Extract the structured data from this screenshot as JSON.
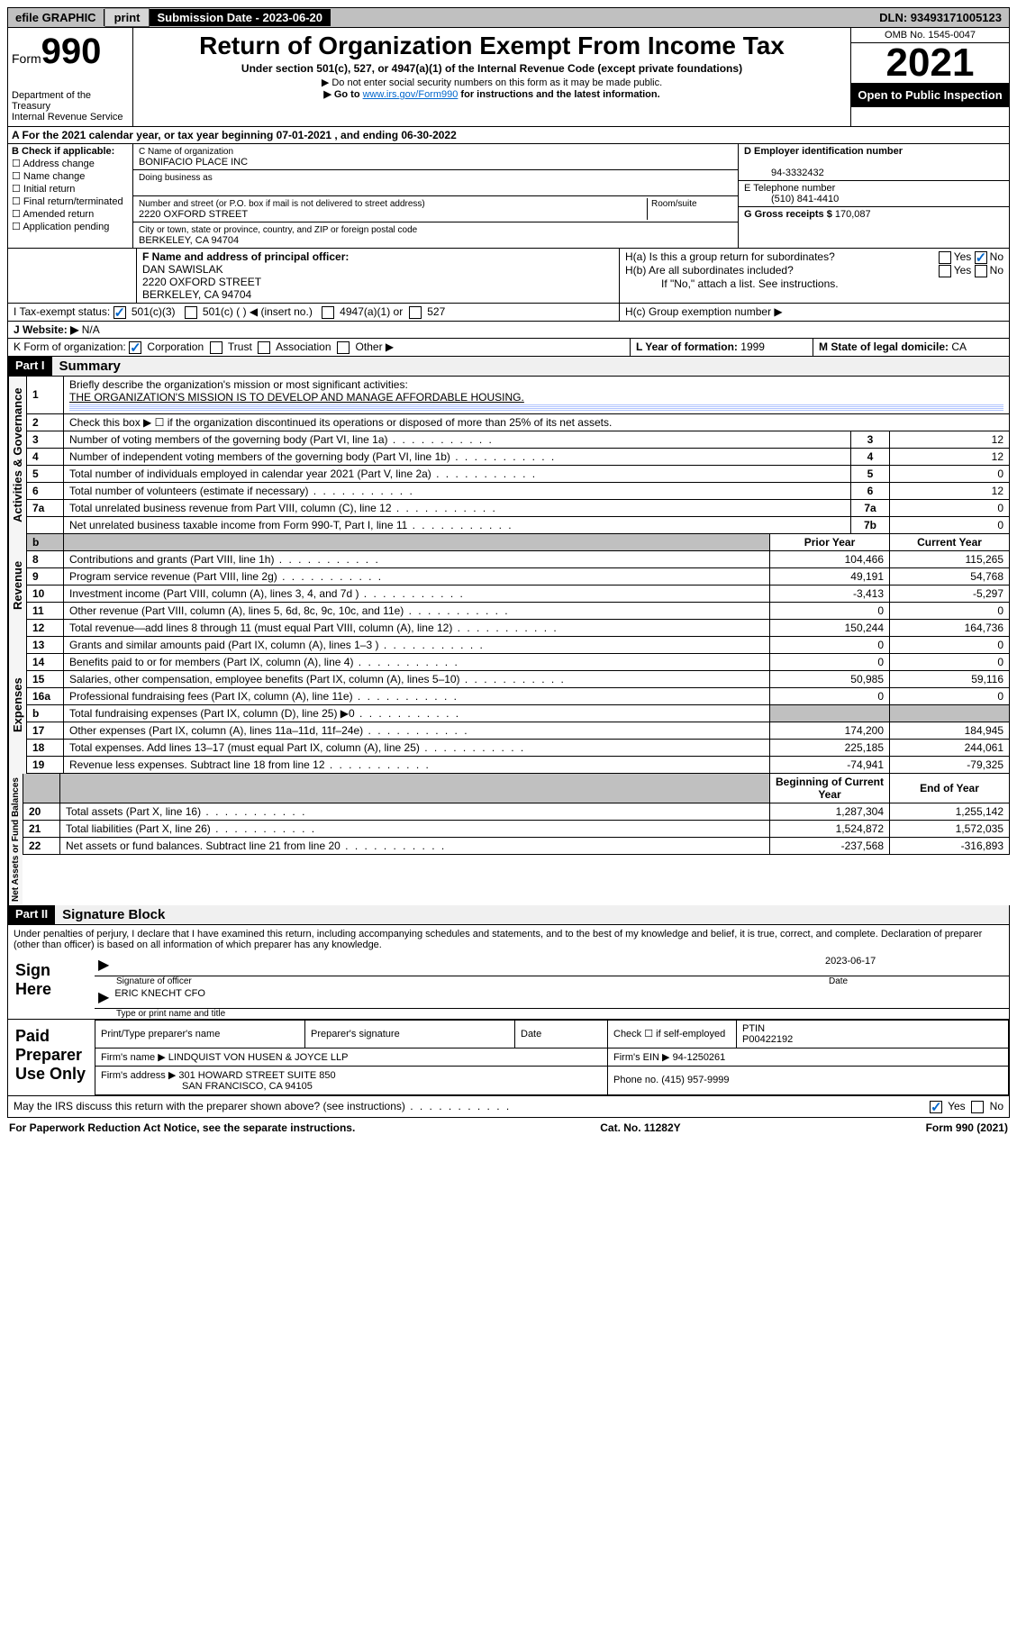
{
  "topbar": {
    "efile": "efile GRAPHIC",
    "print": "print",
    "sub_label": "Submission Date - 2023-06-20",
    "dln": "DLN: 93493171005123"
  },
  "header": {
    "form_prefix": "Form",
    "form_num": "990",
    "dept": "Department of the Treasury",
    "irs": "Internal Revenue Service",
    "title": "Return of Organization Exempt From Income Tax",
    "sub1": "Under section 501(c), 527, or 4947(a)(1) of the Internal Revenue Code (except private foundations)",
    "sub2": "▶ Do not enter social security numbers on this form as it may be made public.",
    "sub3_a": "▶ Go to ",
    "sub3_link": "www.irs.gov/Form990",
    "sub3_b": " for instructions and the latest information.",
    "omb": "OMB No. 1545-0047",
    "year": "2021",
    "inspect": "Open to Public Inspection"
  },
  "rowA": "A For the 2021 calendar year, or tax year beginning 07-01-2021     , and ending 06-30-2022",
  "boxB": {
    "label": "B Check if applicable:",
    "items": [
      "Address change",
      "Name change",
      "Initial return",
      "Final return/terminated",
      "Amended return",
      "Application pending"
    ]
  },
  "boxC": {
    "name_lbl": "C Name of organization",
    "name": "BONIFACIO PLACE INC",
    "dba_lbl": "Doing business as",
    "addr_lbl": "Number and street (or P.O. box if mail is not delivered to street address)",
    "room_lbl": "Room/suite",
    "addr": "2220 OXFORD STREET",
    "city_lbl": "City or town, state or province, country, and ZIP or foreign postal code",
    "city": "BERKELEY, CA  94704"
  },
  "boxD": {
    "lbl": "D Employer identification number",
    "val": "94-3332432"
  },
  "boxE": {
    "lbl": "E Telephone number",
    "val": "(510) 841-4410"
  },
  "boxG": {
    "lbl": "G Gross receipts $",
    "val": "170,087"
  },
  "boxF": {
    "lbl": "F  Name and address of principal officer:",
    "name": "DAN SAWISLAK",
    "addr": "2220 OXFORD STREET",
    "city": "BERKELEY, CA  94704"
  },
  "boxH": {
    "a": "H(a)  Is this a group return for subordinates?",
    "b": "H(b)  Are all subordinates included?",
    "note": "If \"No,\" attach a list. See instructions.",
    "c": "H(c)  Group exemption number ▶",
    "yes": "Yes",
    "no": "No"
  },
  "rowI": {
    "lbl": "I   Tax-exempt status:",
    "a": "501(c)(3)",
    "b": "501(c) (  ) ◀ (insert no.)",
    "c": "4947(a)(1) or",
    "d": "527"
  },
  "rowJ": {
    "lbl": "J   Website: ▶",
    "val": "N/A"
  },
  "rowK": {
    "lbl": "K Form of organization:",
    "a": "Corporation",
    "b": "Trust",
    "c": "Association",
    "d": "Other ▶"
  },
  "rowL": {
    "lbl": "L Year of formation:",
    "val": "1999"
  },
  "rowM": {
    "lbl": "M State of legal domicile:",
    "val": "CA"
  },
  "part1": {
    "hdr": "Part I",
    "title": "Summary",
    "line1_lbl": "Briefly describe the organization's mission or most significant activities:",
    "line1_val": "THE ORGANIZATION'S MISSION IS TO DEVELOP AND MANAGE AFFORDABLE HOUSING.",
    "line2": "Check this box ▶ ☐  if the organization discontinued its operations or disposed of more than 25% of its net assets.",
    "sides": {
      "gov": "Activities & Governance",
      "rev": "Revenue",
      "exp": "Expenses",
      "net": "Net Assets or Fund Balances"
    },
    "gov_rows": [
      {
        "n": "3",
        "d": "Number of voting members of the governing body (Part VI, line 1a)",
        "b": "3",
        "v": "12"
      },
      {
        "n": "4",
        "d": "Number of independent voting members of the governing body (Part VI, line 1b)",
        "b": "4",
        "v": "12"
      },
      {
        "n": "5",
        "d": "Total number of individuals employed in calendar year 2021 (Part V, line 2a)",
        "b": "5",
        "v": "0"
      },
      {
        "n": "6",
        "d": "Total number of volunteers (estimate if necessary)",
        "b": "6",
        "v": "12"
      },
      {
        "n": "7a",
        "d": "Total unrelated business revenue from Part VIII, column (C), line 12",
        "b": "7a",
        "v": "0"
      },
      {
        "n": "",
        "d": "Net unrelated business taxable income from Form 990-T, Part I, line 11",
        "b": "7b",
        "v": "0"
      }
    ],
    "col_hdrs": {
      "b": "b",
      "prior": "Prior Year",
      "curr": "Current Year"
    },
    "rev_rows": [
      {
        "n": "8",
        "d": "Contributions and grants (Part VIII, line 1h)",
        "p": "104,466",
        "c": "115,265"
      },
      {
        "n": "9",
        "d": "Program service revenue (Part VIII, line 2g)",
        "p": "49,191",
        "c": "54,768"
      },
      {
        "n": "10",
        "d": "Investment income (Part VIII, column (A), lines 3, 4, and 7d )",
        "p": "-3,413",
        "c": "-5,297"
      },
      {
        "n": "11",
        "d": "Other revenue (Part VIII, column (A), lines 5, 6d, 8c, 9c, 10c, and 11e)",
        "p": "0",
        "c": "0"
      },
      {
        "n": "12",
        "d": "Total revenue—add lines 8 through 11 (must equal Part VIII, column (A), line 12)",
        "p": "150,244",
        "c": "164,736"
      }
    ],
    "exp_rows": [
      {
        "n": "13",
        "d": "Grants and similar amounts paid (Part IX, column (A), lines 1–3 )",
        "p": "0",
        "c": "0"
      },
      {
        "n": "14",
        "d": "Benefits paid to or for members (Part IX, column (A), line 4)",
        "p": "0",
        "c": "0"
      },
      {
        "n": "15",
        "d": "Salaries, other compensation, employee benefits (Part IX, column (A), lines 5–10)",
        "p": "50,985",
        "c": "59,116"
      },
      {
        "n": "16a",
        "d": "Professional fundraising fees (Part IX, column (A), line 11e)",
        "p": "0",
        "c": "0"
      },
      {
        "n": "b",
        "d": "Total fundraising expenses (Part IX, column (D), line 25) ▶0",
        "p": "",
        "c": "",
        "grey": true
      },
      {
        "n": "17",
        "d": "Other expenses (Part IX, column (A), lines 11a–11d, 11f–24e)",
        "p": "174,200",
        "c": "184,945"
      },
      {
        "n": "18",
        "d": "Total expenses. Add lines 13–17 (must equal Part IX, column (A), line 25)",
        "p": "225,185",
        "c": "244,061"
      },
      {
        "n": "19",
        "d": "Revenue less expenses. Subtract line 18 from line 12",
        "p": "-74,941",
        "c": "-79,325"
      }
    ],
    "net_hdrs": {
      "beg": "Beginning of Current Year",
      "end": "End of Year"
    },
    "net_rows": [
      {
        "n": "20",
        "d": "Total assets (Part X, line 16)",
        "p": "1,287,304",
        "c": "1,255,142"
      },
      {
        "n": "21",
        "d": "Total liabilities (Part X, line 26)",
        "p": "1,524,872",
        "c": "1,572,035"
      },
      {
        "n": "22",
        "d": "Net assets or fund balances. Subtract line 21 from line 20",
        "p": "-237,568",
        "c": "-316,893"
      }
    ]
  },
  "part2": {
    "hdr": "Part II",
    "title": "Signature Block",
    "decl": "Under penalties of perjury, I declare that I have examined this return, including accompanying schedules and statements, and to the best of my knowledge and belief, it is true, correct, and complete. Declaration of preparer (other than officer) is based on all information of which preparer has any knowledge.",
    "sign_here": "Sign Here",
    "sig_officer": "Signature of officer",
    "date_lbl": "Date",
    "sig_date": "2023-06-17",
    "officer_name": "ERIC KNECHT CFO",
    "type_name": "Type or print name and title",
    "paid": "Paid Preparer Use Only",
    "prep_name_lbl": "Print/Type preparer's name",
    "prep_sig_lbl": "Preparer's signature",
    "check_self": "Check ☐ if self-employed",
    "ptin_lbl": "PTIN",
    "ptin": "P00422192",
    "firm_name_lbl": "Firm's name    ▶",
    "firm_name": "LINDQUIST VON HUSEN & JOYCE LLP",
    "firm_ein_lbl": "Firm's EIN ▶",
    "firm_ein": "94-1250261",
    "firm_addr_lbl": "Firm's address ▶",
    "firm_addr": "301 HOWARD STREET SUITE 850",
    "firm_city": "SAN FRANCISCO, CA  94105",
    "phone_lbl": "Phone no.",
    "phone": "(415) 957-9999",
    "discuss": "May the IRS discuss this return with the preparer shown above? (see instructions)",
    "yes": "Yes",
    "no": "No"
  },
  "footer": {
    "left": "For Paperwork Reduction Act Notice, see the separate instructions.",
    "mid": "Cat. No. 11282Y",
    "right": "Form 990 (2021)"
  }
}
